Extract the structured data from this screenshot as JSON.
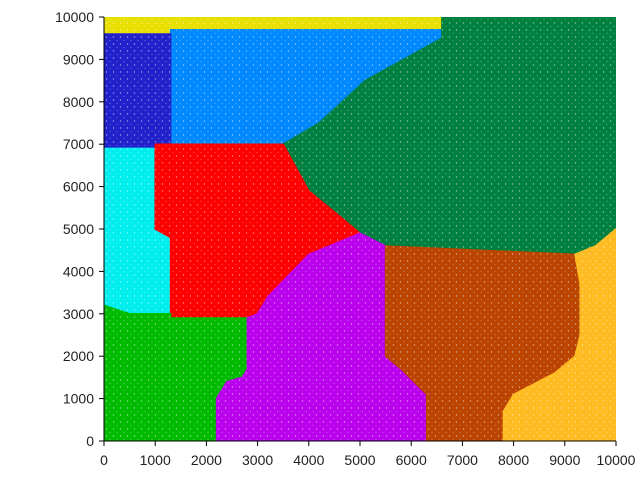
{
  "chart_data": {
    "type": "scatter",
    "title": "",
    "xlabel": "",
    "ylabel": "",
    "xlim": [
      0,
      10000
    ],
    "ylim": [
      0,
      10000
    ],
    "x_ticks": [
      0,
      1000,
      2000,
      3000,
      4000,
      5000,
      6000,
      7000,
      8000,
      9000,
      10000
    ],
    "y_ticks": [
      0,
      1000,
      2000,
      3000,
      4000,
      5000,
      6000,
      7000,
      8000,
      9000,
      10000
    ],
    "x_tick_labels": [
      "0",
      "1000",
      "2000",
      "3000",
      "4000",
      "5000",
      "6000",
      "7000",
      "8000",
      "9000",
      "10000"
    ],
    "y_tick_labels": [
      "0",
      "1000",
      "2000",
      "3000",
      "4000",
      "5000",
      "6000",
      "7000",
      "8000",
      "9000",
      "10000"
    ],
    "grid": false,
    "legend": "none",
    "regions": [
      {
        "color": "#e8e000",
        "polygon": [
          [
            0,
            10000
          ],
          [
            6600,
            10000
          ],
          [
            6600,
            9700
          ],
          [
            1300,
            9700
          ],
          [
            1300,
            9600
          ],
          [
            0,
            9600
          ]
        ]
      },
      {
        "color": "#0088ff",
        "polygon": [
          [
            1300,
            9700
          ],
          [
            6600,
            9700
          ],
          [
            6600,
            9500
          ],
          [
            5100,
            8500
          ],
          [
            4200,
            7500
          ],
          [
            3500,
            7000
          ],
          [
            1300,
            7000
          ]
        ]
      },
      {
        "color": "#2222cc",
        "polygon": [
          [
            0,
            9600
          ],
          [
            1300,
            9600
          ],
          [
            1300,
            7000
          ],
          [
            1000,
            7000
          ],
          [
            1000,
            6900
          ],
          [
            0,
            6900
          ]
        ]
      },
      {
        "color": "#008040",
        "polygon": [
          [
            6600,
            10000
          ],
          [
            10000,
            10000
          ],
          [
            10000,
            5000
          ],
          [
            9600,
            4600
          ],
          [
            9200,
            4400
          ],
          [
            5500,
            4600
          ],
          [
            5000,
            4900
          ],
          [
            4000,
            5900
          ],
          [
            3500,
            7000
          ],
          [
            4200,
            7500
          ],
          [
            5100,
            8500
          ],
          [
            6600,
            9500
          ]
        ]
      },
      {
        "color": "#00eeee",
        "polygon": [
          [
            0,
            6900
          ],
          [
            1000,
            6900
          ],
          [
            1000,
            5000
          ],
          [
            1300,
            4800
          ],
          [
            1300,
            3000
          ],
          [
            500,
            3000
          ],
          [
            0,
            3200
          ]
        ]
      },
      {
        "color": "#ff0000",
        "polygon": [
          [
            1000,
            6900
          ],
          [
            1000,
            7000
          ],
          [
            3500,
            7000
          ],
          [
            4000,
            5900
          ],
          [
            5000,
            4900
          ],
          [
            4600,
            4700
          ],
          [
            4000,
            4400
          ],
          [
            3200,
            3400
          ],
          [
            3000,
            3000
          ],
          [
            2800,
            2900
          ],
          [
            1300,
            2900
          ],
          [
            1300,
            4800
          ],
          [
            1000,
            5000
          ]
        ]
      },
      {
        "color": "#00bb00",
        "polygon": [
          [
            0,
            3200
          ],
          [
            500,
            3000
          ],
          [
            1300,
            3000
          ],
          [
            1300,
            2900
          ],
          [
            2800,
            2900
          ],
          [
            2800,
            1700
          ],
          [
            2700,
            1500
          ],
          [
            2400,
            1400
          ],
          [
            2200,
            1000
          ],
          [
            2200,
            0
          ],
          [
            0,
            0
          ]
        ]
      },
      {
        "color": "#bb00ee",
        "polygon": [
          [
            2200,
            0
          ],
          [
            6300,
            0
          ],
          [
            6300,
            1100
          ],
          [
            5800,
            1700
          ],
          [
            5500,
            2000
          ],
          [
            5500,
            4600
          ],
          [
            5000,
            4900
          ],
          [
            4600,
            4700
          ],
          [
            4000,
            4400
          ],
          [
            3200,
            3400
          ],
          [
            3000,
            3000
          ],
          [
            2800,
            2900
          ],
          [
            2800,
            1700
          ],
          [
            2700,
            1500
          ],
          [
            2400,
            1400
          ],
          [
            2200,
            1000
          ]
        ]
      },
      {
        "color": "#bb4400",
        "polygon": [
          [
            5500,
            4600
          ],
          [
            9200,
            4400
          ],
          [
            9300,
            3700
          ],
          [
            9300,
            2500
          ],
          [
            9200,
            2000
          ],
          [
            8800,
            1600
          ],
          [
            8000,
            1100
          ],
          [
            7800,
            700
          ],
          [
            7800,
            0
          ],
          [
            6300,
            0
          ],
          [
            6300,
            1100
          ],
          [
            5800,
            1700
          ],
          [
            5500,
            2000
          ]
        ]
      },
      {
        "color": "#ffbb22",
        "polygon": [
          [
            7800,
            0
          ],
          [
            10000,
            0
          ],
          [
            10000,
            5000
          ],
          [
            9600,
            4600
          ],
          [
            9200,
            4400
          ],
          [
            9300,
            3700
          ],
          [
            9300,
            2500
          ],
          [
            9200,
            2000
          ],
          [
            8800,
            1600
          ],
          [
            8000,
            1100
          ],
          [
            7800,
            700
          ]
        ]
      }
    ]
  }
}
